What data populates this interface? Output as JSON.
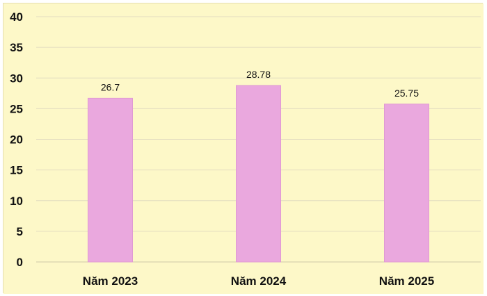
{
  "chart_data": {
    "type": "bar",
    "categories": [
      "Năm 2023",
      "Năm 2024",
      "Năm 2025"
    ],
    "values": [
      26.7,
      28.78,
      25.75
    ],
    "data_labels": [
      "26.7",
      "28.78",
      "25.75"
    ],
    "title": "",
    "xlabel": "",
    "ylabel": "",
    "ylim": [
      0,
      40
    ],
    "yticks": [
      0,
      5,
      10,
      15,
      20,
      25,
      30,
      35,
      40
    ],
    "grid": true,
    "legend": "none",
    "colors": {
      "background": "#fdf8c8",
      "bar": "#eaa8de",
      "bar_edge": "#e09ad3",
      "grid": "#e2dcc0",
      "axis": "#cfc8a8"
    }
  }
}
